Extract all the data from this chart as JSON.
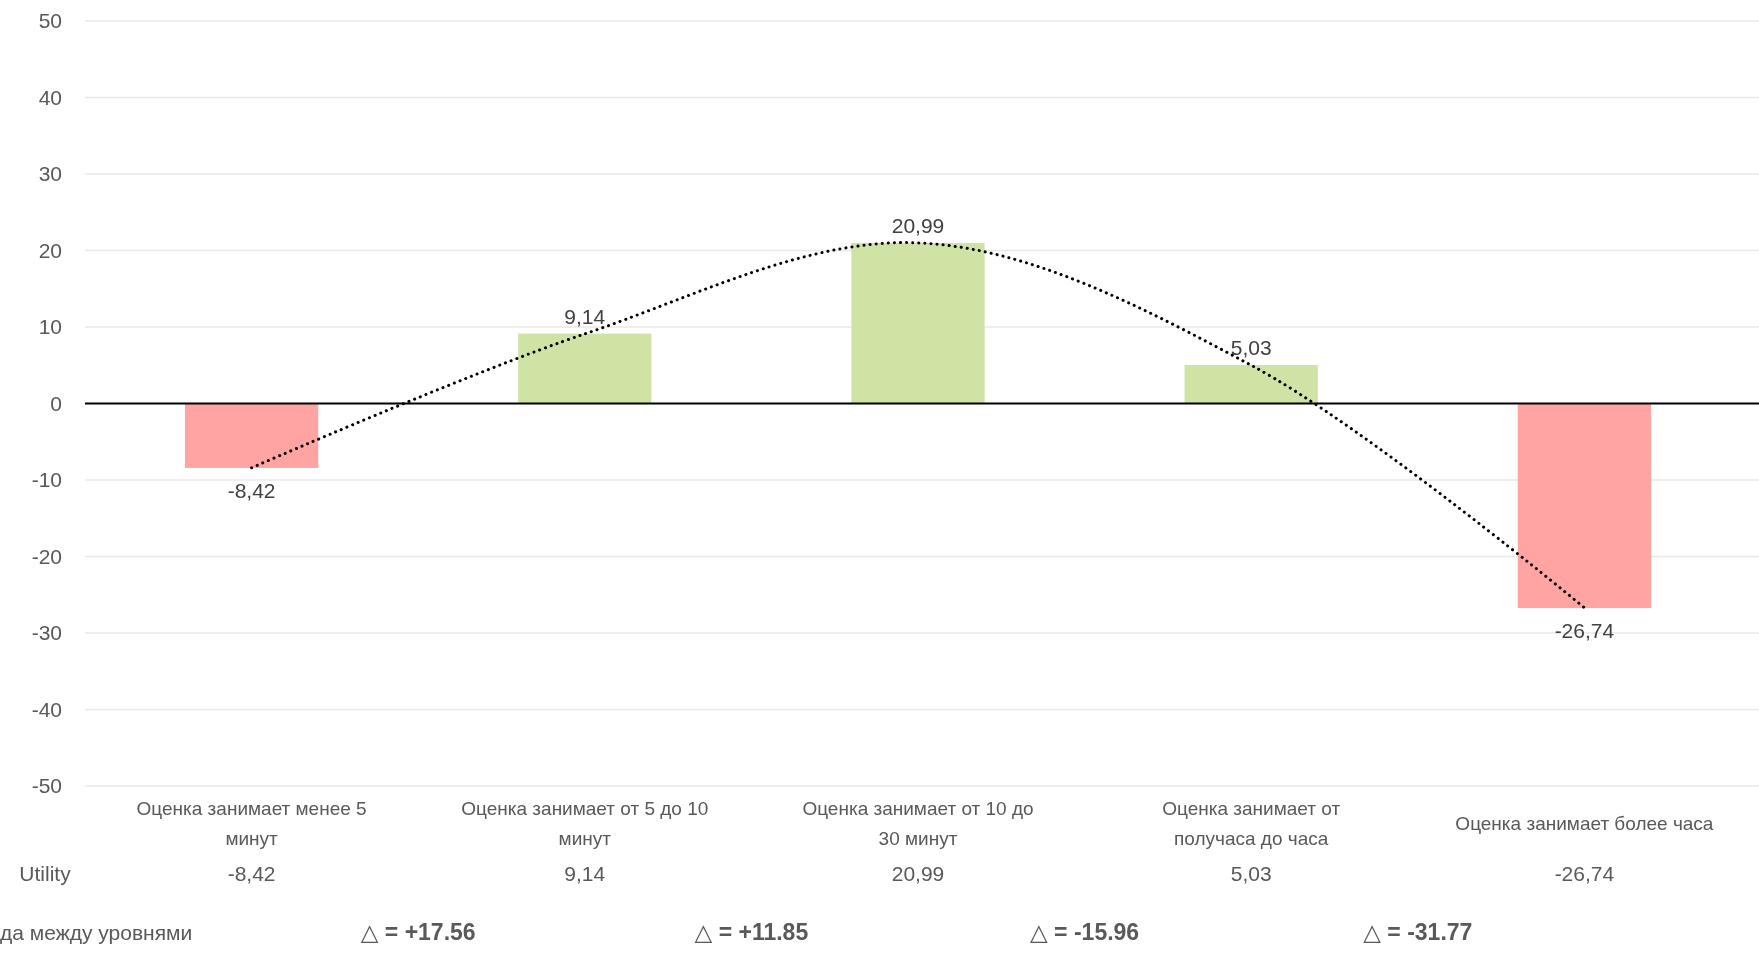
{
  "chart_data": {
    "type": "bar",
    "categories": [
      "Оценка занимает менее 5 минут",
      "Оценка занимает от 5 до 10 минут",
      "Оценка занимает от 10 до 30 минут",
      "Оценка занимает от получаса до часа",
      "Оценка занимает более часа"
    ],
    "series": [
      {
        "name": "Utility",
        "values": [
          -8.42,
          9.14,
          20.99,
          5.03,
          -26.74
        ],
        "colors": [
          "#ffa3a3",
          "#cfe3a5",
          "#cfe3a5",
          "#cfe3a5",
          "#ffa3a3"
        ],
        "value_labels": [
          "-8,42",
          "9,14",
          "20,99",
          "5,03",
          "-26,74"
        ]
      },
      {
        "type": "line",
        "color": "#000000",
        "line_style": "dotted",
        "marker": "none",
        "values": [
          -8.4,
          9.1,
          21.0,
          5.0,
          -26.7
        ]
      }
    ],
    "ylim": [
      -50,
      50
    ],
    "yticks": [
      -50,
      -40,
      -30,
      -20,
      -10,
      0,
      10,
      20,
      30,
      40,
      50
    ],
    "grid": "y",
    "annotations": [
      "да между уровнями",
      "△ = +17.56",
      "△ = +11.85",
      "△ = -15.96",
      "△ = -31.77"
    ]
  }
}
